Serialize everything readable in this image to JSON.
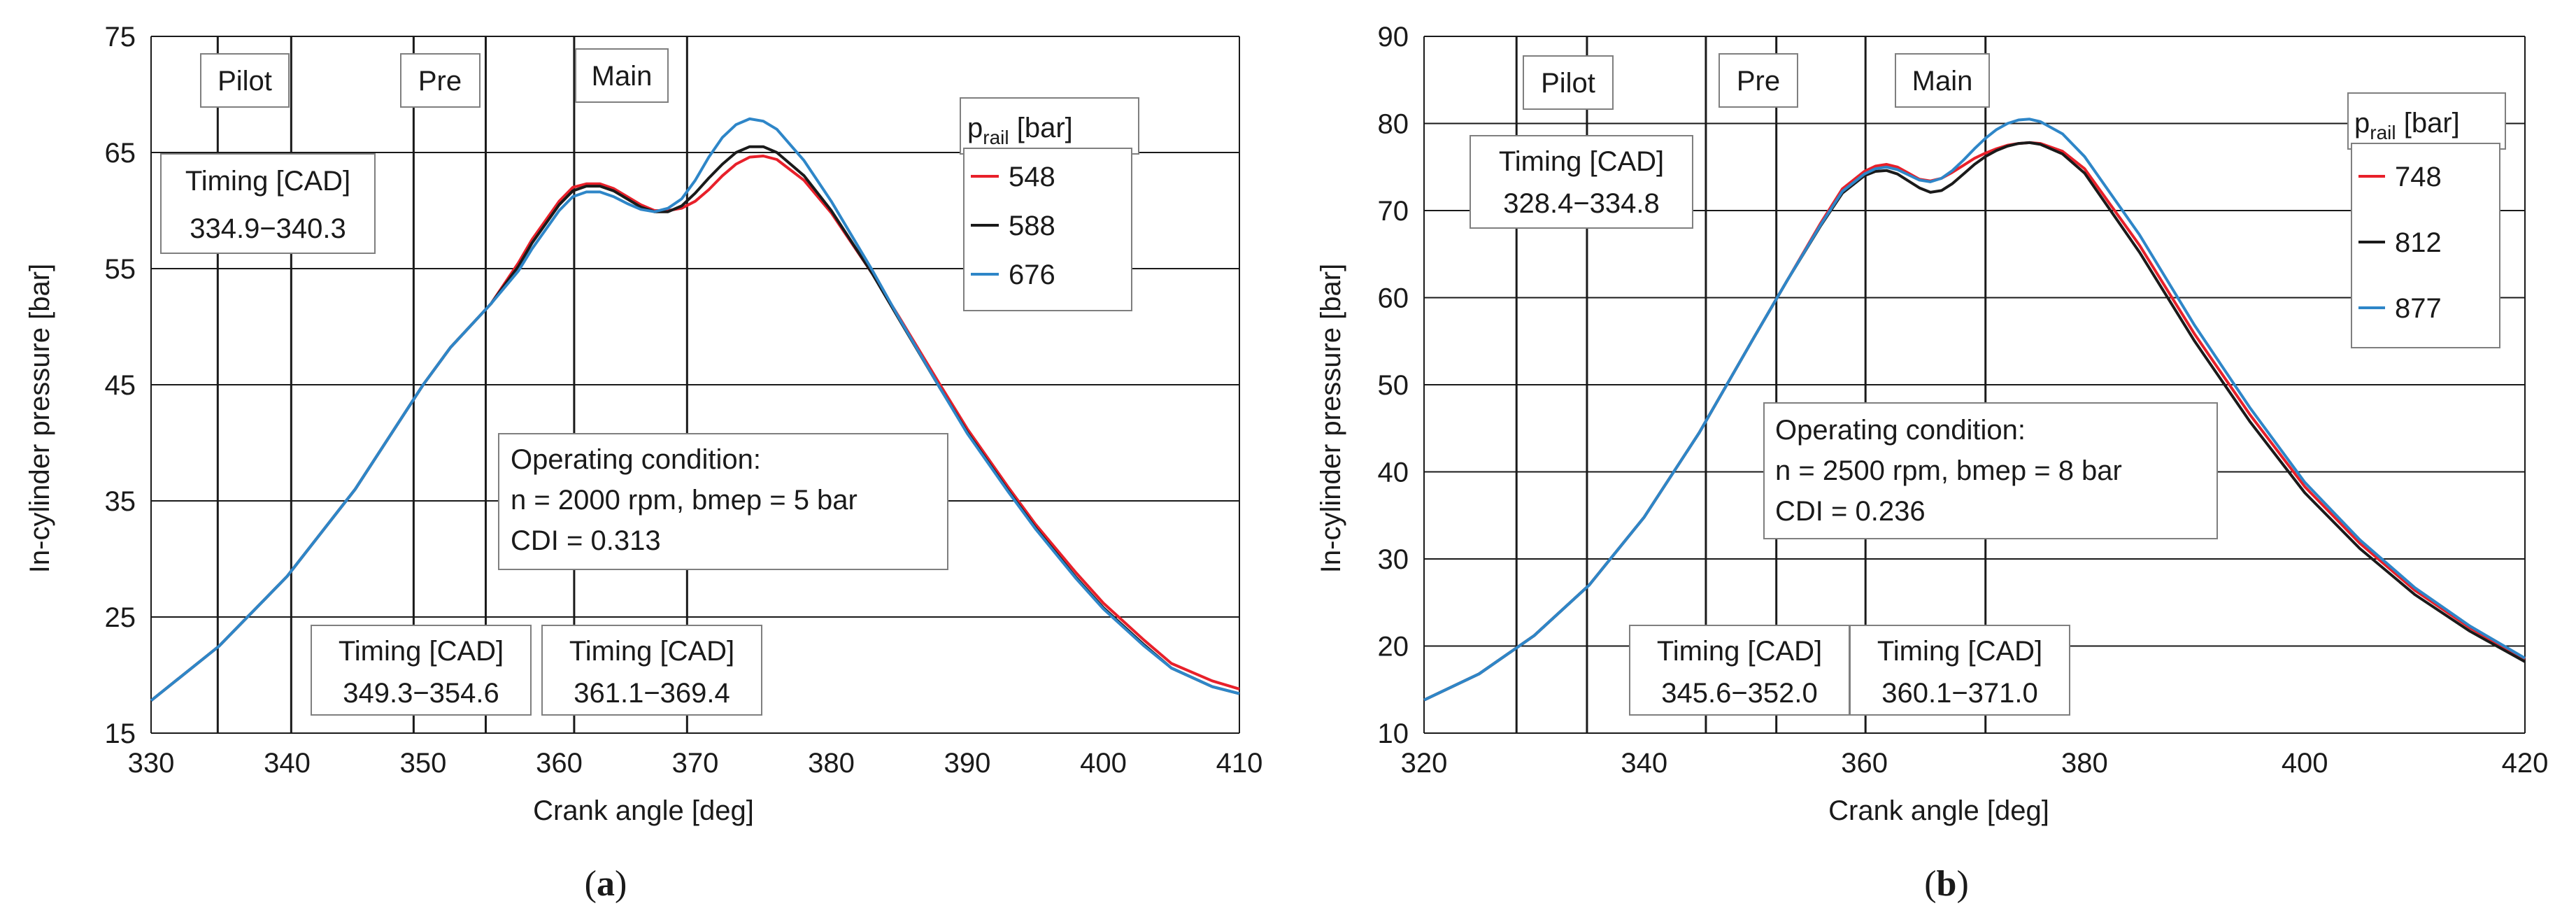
{
  "chart_data": [
    {
      "type": "line",
      "panel": "(a)",
      "panel_letter": "a",
      "xlabel": "Crank angle [deg]",
      "ylabel": "In-cylinder pressure [bar]",
      "xlim": [
        330,
        410
      ],
      "ylim": [
        15,
        75
      ],
      "xticks": [
        330,
        340,
        350,
        360,
        370,
        380,
        390,
        400,
        410
      ],
      "yticks": [
        15,
        25,
        35,
        45,
        55,
        65,
        75
      ],
      "grid": "horizontal",
      "injection_lines": [
        334.9,
        340.3,
        349.3,
        354.6,
        361.1,
        369.4
      ],
      "injections": [
        {
          "name": "Pilot",
          "label_x": 337.6,
          "timing_title": "Timing [CAD]",
          "timing": "334.9−340.3"
        },
        {
          "name": "Pre",
          "label_x": 352.0,
          "timing_title": "Timing [CAD]",
          "timing": "349.3−354.6"
        },
        {
          "name": "Main",
          "label_x": 365.2,
          "timing_title": "Timing [CAD]",
          "timing": "361.1−369.4"
        }
      ],
      "condition": {
        "title": "Operating condition:",
        "line1": "n = 2000 rpm, bmep = 5 bar",
        "line2": "CDI = 0.313"
      },
      "legend": {
        "title_main": "p",
        "title_sub": "rail",
        "title_unit": " [bar]",
        "position": "top-right"
      },
      "x": [
        330,
        335,
        340,
        345,
        350,
        352,
        355,
        357,
        358,
        360,
        361,
        362,
        363,
        364,
        365,
        366,
        367,
        368,
        369,
        370,
        371,
        372,
        373,
        374,
        375,
        376,
        378,
        380,
        383,
        385,
        388,
        390,
        393,
        395,
        398,
        400,
        403,
        405,
        408,
        410
      ],
      "series": [
        {
          "name": "548",
          "color": "#e8202a",
          "values": [
            17.8,
            22.5,
            28.5,
            36.0,
            45.0,
            48.2,
            52.0,
            55.5,
            57.5,
            60.8,
            62.0,
            62.3,
            62.3,
            61.9,
            61.2,
            60.5,
            60.0,
            60.0,
            60.2,
            60.8,
            61.8,
            63.0,
            64.0,
            64.6,
            64.7,
            64.4,
            62.6,
            59.8,
            54.6,
            50.8,
            45.0,
            41.2,
            36.2,
            33.0,
            28.8,
            26.2,
            23.0,
            21.0,
            19.5,
            18.8
          ]
        },
        {
          "name": "588",
          "color": "#1a1a1a",
          "values": [
            17.8,
            22.5,
            28.5,
            36.0,
            45.0,
            48.2,
            52.0,
            55.2,
            57.2,
            60.5,
            61.7,
            62.1,
            62.1,
            61.7,
            61.0,
            60.3,
            59.9,
            59.9,
            60.4,
            61.5,
            62.8,
            64.0,
            65.0,
            65.5,
            65.5,
            65.0,
            63.0,
            60.0,
            54.6,
            50.6,
            44.7,
            40.9,
            35.9,
            32.7,
            28.4,
            25.8,
            22.6,
            20.6,
            19.0,
            18.4
          ]
        },
        {
          "name": "676",
          "color": "#2e86c8",
          "values": [
            17.8,
            22.5,
            28.5,
            36.0,
            45.0,
            48.2,
            52.0,
            54.8,
            56.7,
            60.0,
            61.2,
            61.6,
            61.6,
            61.2,
            60.6,
            60.1,
            59.9,
            60.2,
            61.0,
            62.6,
            64.6,
            66.3,
            67.4,
            67.9,
            67.7,
            67.0,
            64.3,
            60.8,
            54.9,
            50.7,
            44.7,
            40.8,
            35.8,
            32.6,
            28.3,
            25.7,
            22.5,
            20.6,
            19.0,
            18.4
          ]
        }
      ]
    },
    {
      "type": "line",
      "panel": "(b)",
      "panel_letter": "b",
      "xlabel": "Crank angle [deg]",
      "ylabel": "In-cylinder pressure [bar]",
      "xlim": [
        320,
        420
      ],
      "ylim": [
        10,
        90
      ],
      "xticks": [
        320,
        340,
        360,
        380,
        400,
        420
      ],
      "yticks": [
        10,
        20,
        30,
        40,
        50,
        60,
        70,
        80,
        90
      ],
      "grid": "horizontal",
      "injection_lines": [
        328.4,
        334.8,
        345.6,
        352.0,
        360.1,
        371.0
      ],
      "injections": [
        {
          "name": "Pilot",
          "label_x": 331.6,
          "timing_title": "Timing [CAD]",
          "timing": "328.4−334.8"
        },
        {
          "name": "Pre",
          "label_x": 348.8,
          "timing_title": "Timing [CAD]",
          "timing": "345.6−352.0"
        },
        {
          "name": "Main",
          "label_x": 364.5,
          "timing_title": "Timing [CAD]",
          "timing": "360.1−371.0"
        }
      ],
      "condition": {
        "title": "Operating condition:",
        "line1": "n = 2500 rpm, bmep = 8 bar",
        "line2": "CDI = 0.236"
      },
      "legend": {
        "title_main": "p",
        "title_sub": "rail",
        "title_unit": " [bar]",
        "position": "top-right"
      },
      "x": [
        320,
        325,
        330,
        335,
        340,
        345,
        350,
        353,
        356,
        358,
        360,
        361,
        362,
        363,
        364,
        365,
        366,
        367,
        368,
        369,
        370,
        371,
        372,
        373,
        374,
        375,
        376,
        378,
        380,
        385,
        390,
        395,
        400,
        405,
        410,
        415,
        420
      ],
      "series": [
        {
          "name": "748",
          "color": "#e8202a",
          "values": [
            13.8,
            16.8,
            21.2,
            27.0,
            34.8,
            44.5,
            55.5,
            62.0,
            68.5,
            72.5,
            74.5,
            75.1,
            75.3,
            75.0,
            74.3,
            73.6,
            73.4,
            73.7,
            74.4,
            75.2,
            76.0,
            76.6,
            77.1,
            77.5,
            77.7,
            77.8,
            77.7,
            76.8,
            74.8,
            66.0,
            55.8,
            46.6,
            38.3,
            31.8,
            26.4,
            22.1,
            18.5
          ]
        },
        {
          "name": "812",
          "color": "#1a1a1a",
          "values": [
            13.8,
            16.8,
            21.2,
            27.0,
            34.8,
            44.5,
            55.5,
            62.0,
            68.2,
            72.0,
            74.0,
            74.5,
            74.6,
            74.2,
            73.4,
            72.6,
            72.1,
            72.3,
            73.1,
            74.2,
            75.3,
            76.2,
            76.9,
            77.4,
            77.7,
            77.8,
            77.6,
            76.5,
            74.3,
            65.2,
            55.0,
            45.8,
            37.6,
            31.2,
            25.9,
            21.7,
            18.2
          ]
        },
        {
          "name": "877",
          "color": "#2e86c8",
          "values": [
            13.8,
            16.8,
            21.2,
            27.0,
            34.8,
            44.5,
            55.5,
            62.0,
            68.3,
            72.2,
            74.2,
            74.8,
            75.0,
            74.7,
            74.1,
            73.5,
            73.3,
            73.7,
            74.6,
            75.8,
            77.1,
            78.3,
            79.3,
            80.0,
            80.4,
            80.5,
            80.2,
            78.8,
            76.2,
            67.2,
            56.8,
            47.4,
            38.8,
            32.2,
            26.7,
            22.3,
            18.6
          ]
        }
      ]
    }
  ]
}
